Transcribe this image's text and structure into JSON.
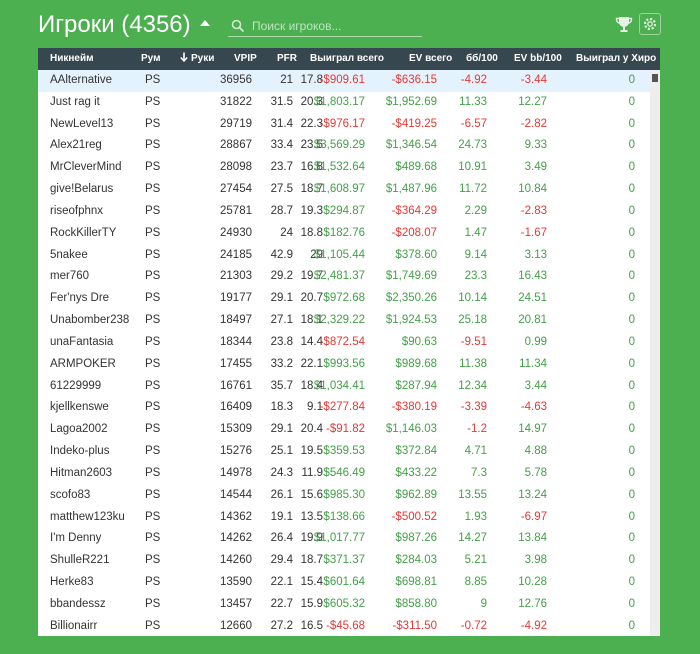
{
  "header": {
    "title": "Игроки (4356)",
    "search_placeholder": "Поиск игроков..."
  },
  "icons": {
    "sort": "caret-up-icon",
    "search": "search-icon",
    "trophy": "trophy-icon",
    "settings": "gear-icon",
    "sort_column": "arrow-down-icon"
  },
  "colors": {
    "background": "#4caf50",
    "header_bg": "#37474f",
    "positive": "#43a047",
    "negative": "#e53935",
    "highlight_row": "#e3f2fd"
  },
  "table": {
    "columns": {
      "nick": "Никнейм",
      "room": "Рум",
      "hands": "Руки",
      "vpip": "VPIP",
      "pfr": "PFR",
      "won": "Выиграл всего",
      "ev": "EV всего",
      "bb100": "бб/100",
      "evbb": "EV bb/100",
      "hero": "Выиграл у Хиро"
    },
    "rows": [
      {
        "nick": "AAlternative",
        "room": "PS",
        "hands": "36956",
        "vpip": "21",
        "pfr": "17.8",
        "won": "-$909.61",
        "ev": "-$636.15",
        "bb100": "-4.92",
        "evbb": "-3.44",
        "hero": "0"
      },
      {
        "nick": "Just rag it",
        "room": "PS",
        "hands": "31822",
        "vpip": "31.5",
        "pfr": "20.3",
        "won": "$1,803.17",
        "ev": "$1,952.69",
        "bb100": "11.33",
        "evbb": "12.27",
        "hero": "0"
      },
      {
        "nick": "NewLevel13",
        "room": "PS",
        "hands": "29719",
        "vpip": "31.4",
        "pfr": "22.3",
        "won": "-$976.17",
        "ev": "-$419.25",
        "bb100": "-6.57",
        "evbb": "-2.82",
        "hero": "0"
      },
      {
        "nick": "Alex21reg",
        "room": "PS",
        "hands": "28867",
        "vpip": "33.4",
        "pfr": "23.5",
        "won": "$3,569.29",
        "ev": "$1,346.54",
        "bb100": "24.73",
        "evbb": "9.33",
        "hero": "0"
      },
      {
        "nick": "MrCleverMind",
        "room": "PS",
        "hands": "28098",
        "vpip": "23.7",
        "pfr": "16.8",
        "won": "$1,532.64",
        "ev": "$489.68",
        "bb100": "10.91",
        "evbb": "3.49",
        "hero": "0"
      },
      {
        "nick": "give!Belarus",
        "room": "PS",
        "hands": "27454",
        "vpip": "27.5",
        "pfr": "18.7",
        "won": "$1,608.97",
        "ev": "$1,487.96",
        "bb100": "11.72",
        "evbb": "10.84",
        "hero": "0"
      },
      {
        "nick": "riseofphnx",
        "room": "PS",
        "hands": "25781",
        "vpip": "28.7",
        "pfr": "19.3",
        "won": "$294.87",
        "ev": "-$364.29",
        "bb100": "2.29",
        "evbb": "-2.83",
        "hero": "0"
      },
      {
        "nick": "RockKillerTY",
        "room": "PS",
        "hands": "24930",
        "vpip": "24",
        "pfr": "18.8",
        "won": "$182.76",
        "ev": "-$208.07",
        "bb100": "1.47",
        "evbb": "-1.67",
        "hero": "0"
      },
      {
        "nick": "5nakee",
        "room": "PS",
        "hands": "24185",
        "vpip": "42.9",
        "pfr": "29",
        "won": "$1,105.44",
        "ev": "$378.60",
        "bb100": "9.14",
        "evbb": "3.13",
        "hero": "0"
      },
      {
        "nick": "mer760",
        "room": "PS",
        "hands": "21303",
        "vpip": "29.2",
        "pfr": "19.7",
        "won": "$2,481.37",
        "ev": "$1,749.69",
        "bb100": "23.3",
        "evbb": "16.43",
        "hero": "0"
      },
      {
        "nick": "Fer'nys Dre",
        "room": "PS",
        "hands": "19177",
        "vpip": "29.1",
        "pfr": "20.7",
        "won": "$972.68",
        "ev": "$2,350.26",
        "bb100": "10.14",
        "evbb": "24.51",
        "hero": "0"
      },
      {
        "nick": "Unabomber238",
        "room": "PS",
        "hands": "18497",
        "vpip": "27.1",
        "pfr": "18.1",
        "won": "$2,329.22",
        "ev": "$1,924.53",
        "bb100": "25.18",
        "evbb": "20.81",
        "hero": "0"
      },
      {
        "nick": "unaFantasia",
        "room": "PS",
        "hands": "18344",
        "vpip": "23.8",
        "pfr": "14.4",
        "won": "-$872.54",
        "ev": "$90.63",
        "bb100": "-9.51",
        "evbb": "0.99",
        "hero": "0"
      },
      {
        "nick": "ARMPOKER",
        "room": "PS",
        "hands": "17455",
        "vpip": "33.2",
        "pfr": "22.1",
        "won": "$993.56",
        "ev": "$989.68",
        "bb100": "11.38",
        "evbb": "11.34",
        "hero": "0"
      },
      {
        "nick": "61229999",
        "room": "PS",
        "hands": "16761",
        "vpip": "35.7",
        "pfr": "18.4",
        "won": "$1,034.41",
        "ev": "$287.94",
        "bb100": "12.34",
        "evbb": "3.44",
        "hero": "0"
      },
      {
        "nick": "kjellkenswe",
        "room": "PS",
        "hands": "16409",
        "vpip": "18.3",
        "pfr": "9.1",
        "won": "-$277.84",
        "ev": "-$380.19",
        "bb100": "-3.39",
        "evbb": "-4.63",
        "hero": "0"
      },
      {
        "nick": "Lagoa2002",
        "room": "PS",
        "hands": "15309",
        "vpip": "29.1",
        "pfr": "20.4",
        "won": "-$91.82",
        "ev": "$1,146.03",
        "bb100": "-1.2",
        "evbb": "14.97",
        "hero": "0"
      },
      {
        "nick": "Indeko-plus",
        "room": "PS",
        "hands": "15276",
        "vpip": "25.1",
        "pfr": "19.5",
        "won": "$359.53",
        "ev": "$372.84",
        "bb100": "4.71",
        "evbb": "4.88",
        "hero": "0"
      },
      {
        "nick": "Hitman2603",
        "room": "PS",
        "hands": "14978",
        "vpip": "24.3",
        "pfr": "11.9",
        "won": "$546.49",
        "ev": "$433.22",
        "bb100": "7.3",
        "evbb": "5.78",
        "hero": "0"
      },
      {
        "nick": "scofo83",
        "room": "PS",
        "hands": "14544",
        "vpip": "26.1",
        "pfr": "15.6",
        "won": "$985.30",
        "ev": "$962.89",
        "bb100": "13.55",
        "evbb": "13.24",
        "hero": "0"
      },
      {
        "nick": "matthew123ku",
        "room": "PS",
        "hands": "14362",
        "vpip": "19.1",
        "pfr": "13.5",
        "won": "$138.66",
        "ev": "-$500.52",
        "bb100": "1.93",
        "evbb": "-6.97",
        "hero": "0"
      },
      {
        "nick": "I'm Denny",
        "room": "PS",
        "hands": "14262",
        "vpip": "26.4",
        "pfr": "19.9",
        "won": "$1,017.77",
        "ev": "$987.26",
        "bb100": "14.27",
        "evbb": "13.84",
        "hero": "0"
      },
      {
        "nick": "ShulleR221",
        "room": "PS",
        "hands": "14260",
        "vpip": "29.4",
        "pfr": "18.7",
        "won": "$371.37",
        "ev": "$284.03",
        "bb100": "5.21",
        "evbb": "3.98",
        "hero": "0"
      },
      {
        "nick": "Herke83",
        "room": "PS",
        "hands": "13590",
        "vpip": "22.1",
        "pfr": "15.4",
        "won": "$601.64",
        "ev": "$698.81",
        "bb100": "8.85",
        "evbb": "10.28",
        "hero": "0"
      },
      {
        "nick": "bbandessz",
        "room": "PS",
        "hands": "13457",
        "vpip": "22.7",
        "pfr": "15.9",
        "won": "$605.32",
        "ev": "$858.80",
        "bb100": "9",
        "evbb": "12.76",
        "hero": "0"
      },
      {
        "nick": "Billionairr",
        "room": "PS",
        "hands": "12660",
        "vpip": "27.2",
        "pfr": "16.5",
        "won": "-$45.68",
        "ev": "-$311.50",
        "bb100": "-0.72",
        "evbb": "-4.92",
        "hero": "0"
      }
    ]
  }
}
